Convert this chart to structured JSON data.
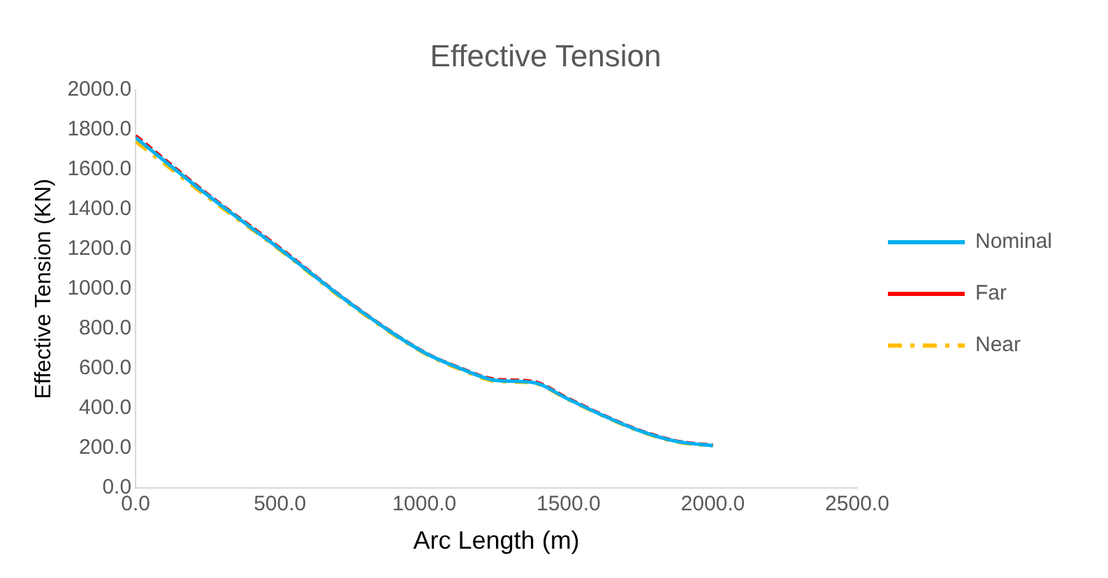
{
  "chart_data": {
    "type": "line",
    "title": "Effective Tension",
    "xlabel": "Arc Length (m)",
    "ylabel": "Effective Tension (KN)",
    "x": [
      0,
      250,
      500,
      750,
      1000,
      1125,
      1250,
      1375,
      1500,
      1625,
      1750,
      1875,
      2000
    ],
    "series": [
      {
        "name": "Nominal",
        "color": "#00b0f0",
        "line_style": "solid",
        "values": [
          1760,
          1470,
          1200,
          920,
          680,
          600,
          540,
          530,
          445,
          360,
          285,
          233,
          212
        ]
      },
      {
        "name": "Far",
        "color": "#ff0000",
        "line_style": "dashed",
        "values": [
          1770,
          1475,
          1205,
          922,
          682,
          602,
          545,
          535,
          448,
          362,
          287,
          235,
          214
        ]
      },
      {
        "name": "Near",
        "color": "#ffc000",
        "line_style": "dashdot",
        "values": [
          1740,
          1460,
          1195,
          915,
          676,
          595,
          535,
          527,
          442,
          357,
          282,
          230,
          210
        ]
      }
    ],
    "xlim": [
      0,
      2500
    ],
    "xticks": [
      {
        "value": 0,
        "label": "0.0"
      },
      {
        "value": 500,
        "label": "500.0"
      },
      {
        "value": 1000,
        "label": "1000.0"
      },
      {
        "value": 1500,
        "label": "1500.0"
      },
      {
        "value": 2000,
        "label": "2000.0"
      },
      {
        "value": 2500,
        "label": "2500.0"
      }
    ],
    "ylim": [
      0,
      2000
    ],
    "yticks": [
      {
        "value": 0,
        "label": "0.0"
      },
      {
        "value": 200,
        "label": "200.0"
      },
      {
        "value": 400,
        "label": "400.0"
      },
      {
        "value": 600,
        "label": "600.0"
      },
      {
        "value": 800,
        "label": "800.0"
      },
      {
        "value": 1000,
        "label": "1000.0"
      },
      {
        "value": 1200,
        "label": "1200.0"
      },
      {
        "value": 1400,
        "label": "1400.0"
      },
      {
        "value": 1600,
        "label": "1600.0"
      },
      {
        "value": 1800,
        "label": "1800.0"
      },
      {
        "value": 2000,
        "label": "2000.0"
      }
    ],
    "grid": false,
    "legend": "right",
    "marker": "none"
  }
}
